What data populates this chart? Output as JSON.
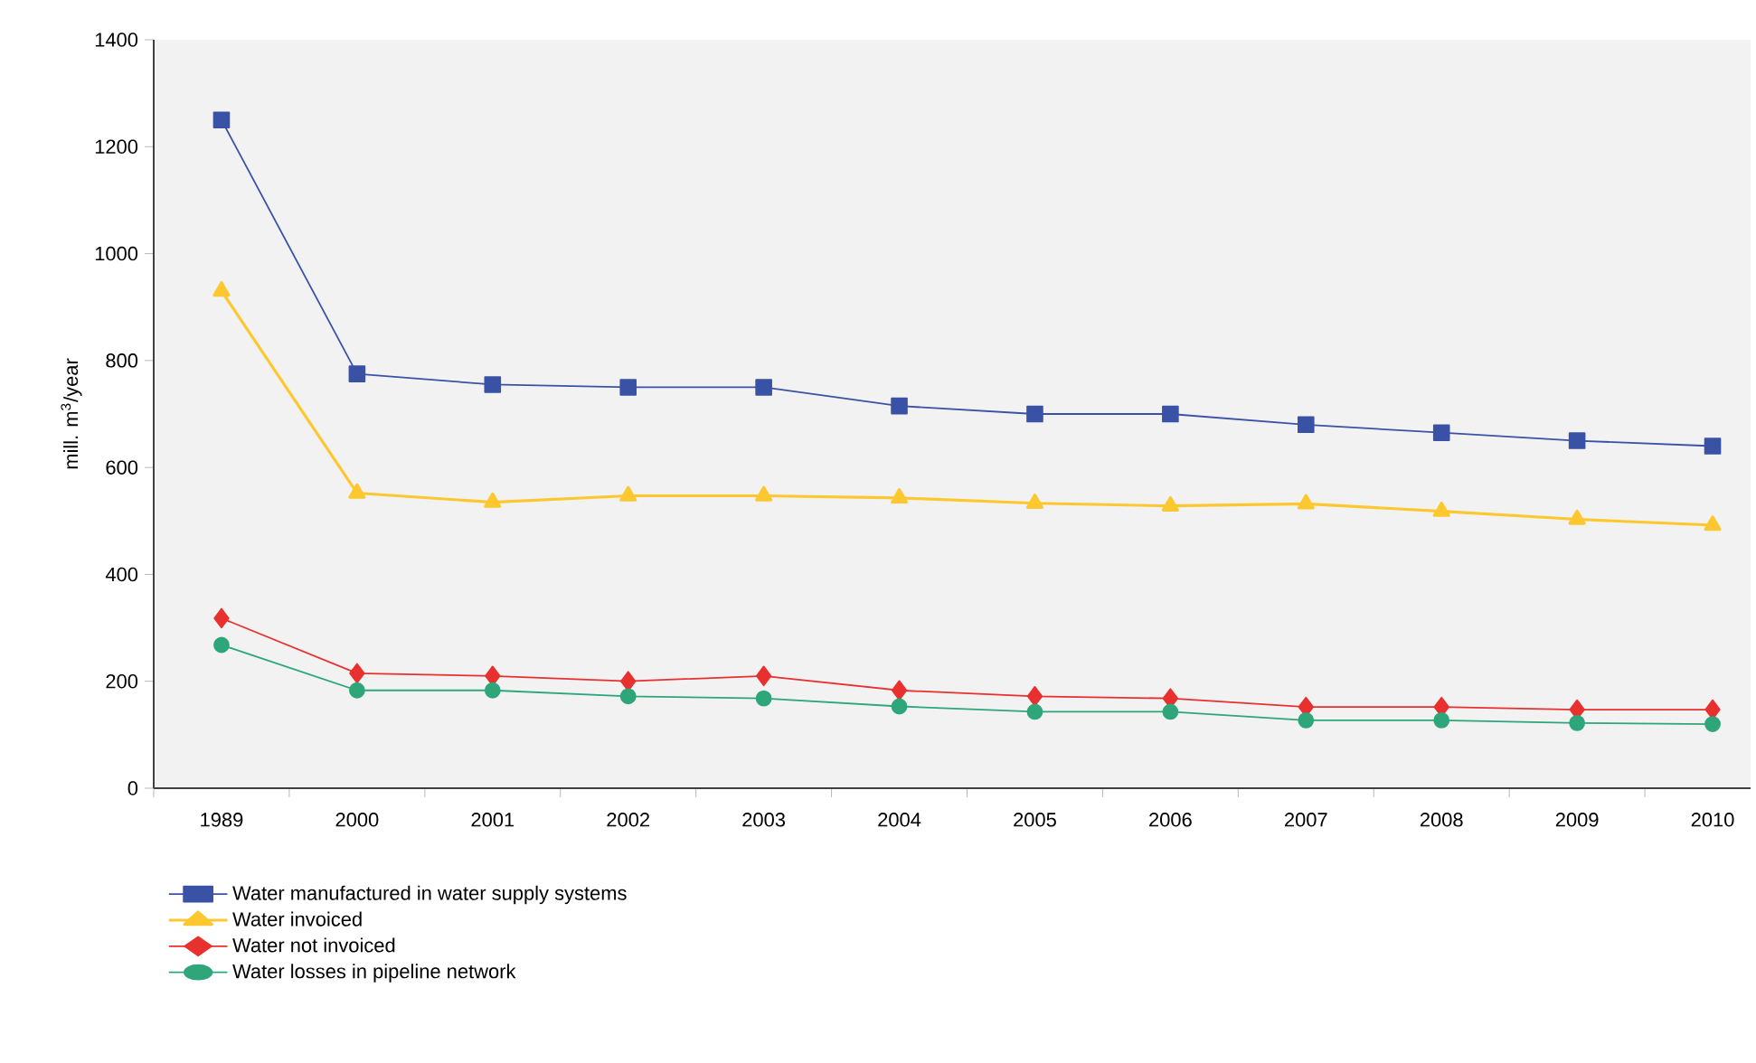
{
  "chart_data": {
    "type": "line",
    "ylabel": "mill. m$^{3}$/year",
    "categories": [
      "1989",
      "2000",
      "2001",
      "2002",
      "2003",
      "2004",
      "2005",
      "2006",
      "2007",
      "2008",
      "2009",
      "2010"
    ],
    "ylim": [
      0,
      1400
    ],
    "yticks": [
      0,
      200,
      400,
      600,
      800,
      1000,
      1200,
      1400
    ],
    "legend": "bottom",
    "grid": false,
    "line_style": "solid",
    "series": [
      {
        "name": "Water manufactured in water supply systems",
        "color": "#3a52a5",
        "marker": "square",
        "values": [
          1250,
          775,
          755,
          750,
          750,
          715,
          700,
          700,
          680,
          665,
          650,
          640
        ]
      },
      {
        "name": "Water invoiced",
        "color": "#fdc82f",
        "marker": "triangle",
        "values": [
          930,
          552,
          535,
          547,
          547,
          543,
          533,
          528,
          532,
          518,
          503,
          492
        ]
      },
      {
        "name": "Water not invoiced",
        "color": "#e8312f",
        "marker": "diamond",
        "values": [
          318,
          215,
          210,
          200,
          210,
          183,
          172,
          168,
          152,
          152,
          147,
          147
        ]
      },
      {
        "name": "Water losses in pipeline network",
        "color": "#2ea67a",
        "marker": "circle",
        "values": [
          268,
          183,
          183,
          172,
          168,
          153,
          143,
          143,
          127,
          127,
          122,
          120
        ]
      }
    ]
  }
}
